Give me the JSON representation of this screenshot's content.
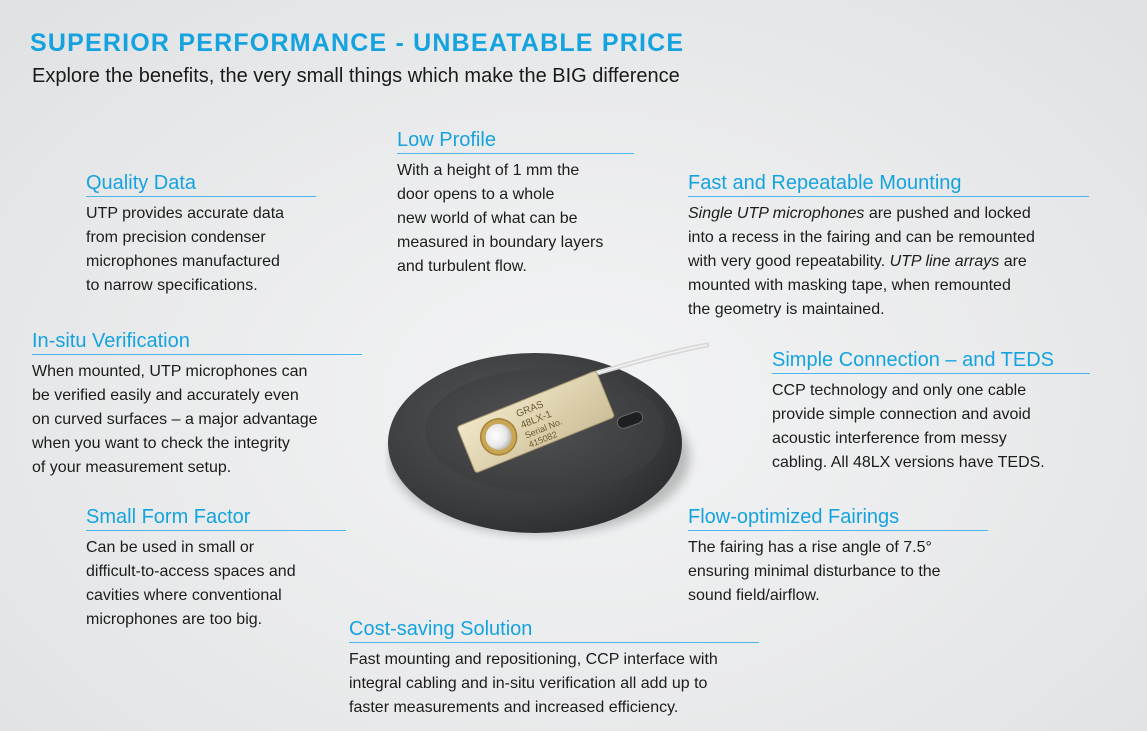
{
  "header": {
    "title": "SUPERIOR PERFORMANCE - UNBEATABLE PRICE",
    "subtitle": "Explore the benefits, the very small things which make the BIG difference"
  },
  "features": {
    "quality_data": {
      "title": "Quality Data",
      "lines": [
        "UTP provides accurate data",
        "from precision condenser",
        "microphones manufactured",
        "to narrow specifications."
      ]
    },
    "low_profile": {
      "title": "Low Profile",
      "lines": [
        "With a height of 1 mm the",
        "door opens to a whole",
        "new world of what can be",
        "measured in boundary layers",
        "and turbulent flow."
      ]
    },
    "fast_mounting": {
      "title": "Fast and Repeatable Mounting",
      "l1_em": "Single UTP microphones",
      "l1_rest": " are pushed and locked",
      "l2": "into a recess in the fairing and can be remounted",
      "l3_pre": "with very good repeatability. ",
      "l3_em": "UTP line arrays",
      "l3_post": " are",
      "l4": "mounted with masking tape, when remounted",
      "l5": "the geometry is maintained."
    },
    "in_situ": {
      "title": "In-situ Verification",
      "lines": [
        "When mounted, UTP microphones can",
        "be verified easily and accurately even",
        "on curved surfaces – a major advantage",
        "when you want to check the integrity",
        "of your measurement setup."
      ]
    },
    "simple_connection": {
      "title": "Simple Connection – and TEDS",
      "lines": [
        "CCP technology and only one cable",
        "provide simple connection and avoid",
        "acoustic interference from messy",
        "cabling. All 48LX versions have TEDS."
      ]
    },
    "small_form": {
      "title": "Small Form Factor",
      "lines": [
        "Can be used in small or",
        "difficult-to-access spaces and",
        "cavities where conventional",
        "microphones are too big."
      ]
    },
    "flow_fairings": {
      "title": "Flow-optimized Fairings",
      "lines": [
        "The fairing has a rise angle of 7.5°",
        "ensuring minimal disturbance to the",
        "sound field/airflow."
      ]
    },
    "cost_saving": {
      "title": "Cost-saving Solution",
      "lines": [
        "Fast mounting and repositioning, CCP interface with",
        "integral cabling and in-situ verification all add up to",
        "faster measurements and increased efficiency."
      ]
    }
  },
  "product_label": {
    "brand": "GRAS",
    "model": "48LX-1",
    "serial_label": "Serial No.",
    "serial_number": "415082"
  },
  "colors": {
    "accent": "#15a3e0",
    "text": "#1c1c1c",
    "background": "#e9eaeb"
  }
}
